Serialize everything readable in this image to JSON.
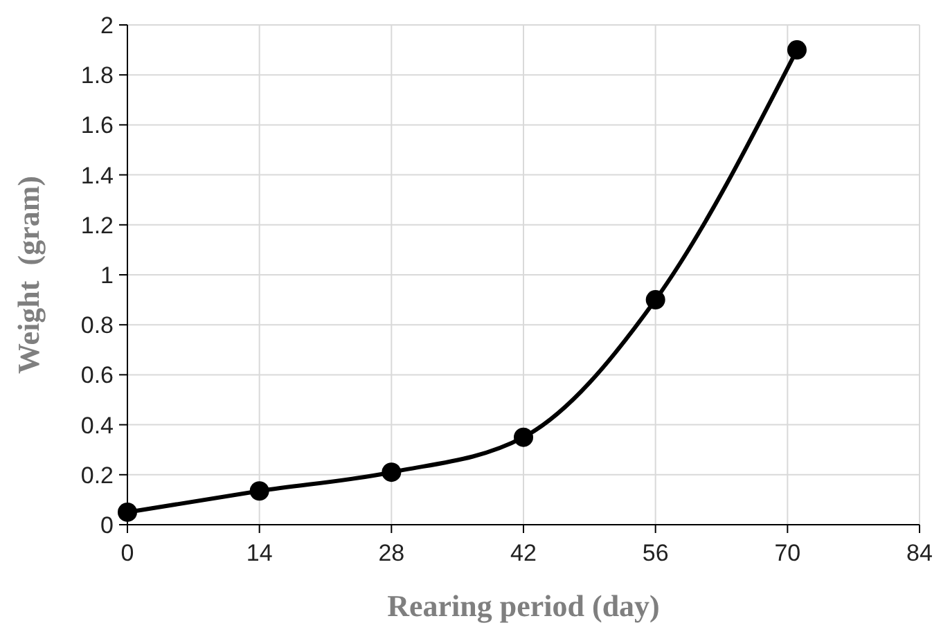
{
  "chart_data": {
    "type": "line",
    "xlabel": "Rearing period (day)",
    "ylabel": "Weight  (gram)",
    "x": [
      0,
      14,
      28,
      42,
      56,
      71
    ],
    "series": [
      {
        "color": "#000000",
        "values": [
          0.05,
          0.135,
          0.21,
          0.35,
          0.9,
          1.9
        ]
      }
    ],
    "xlim": [
      0,
      84
    ],
    "xticks": [
      0,
      14,
      28,
      42,
      56,
      70,
      84
    ],
    "ylim": [
      0,
      2
    ],
    "yticks": [
      0,
      {
        "value": 0.2,
        "label": "0.2"
      },
      {
        "value": 0.4,
        "label": "0.4"
      },
      {
        "value": 0.6,
        "label": "0.6"
      },
      {
        "value": 0.8,
        "label": "0.8"
      },
      1,
      {
        "value": 1.2,
        "label": "1.2"
      },
      {
        "value": 1.4,
        "label": "1.4"
      },
      {
        "value": 1.6,
        "label": "1.6"
      },
      {
        "value": 1.8,
        "label": "1.8"
      },
      2
    ],
    "grid": true,
    "marker": "circle",
    "line_style": "solid"
  }
}
